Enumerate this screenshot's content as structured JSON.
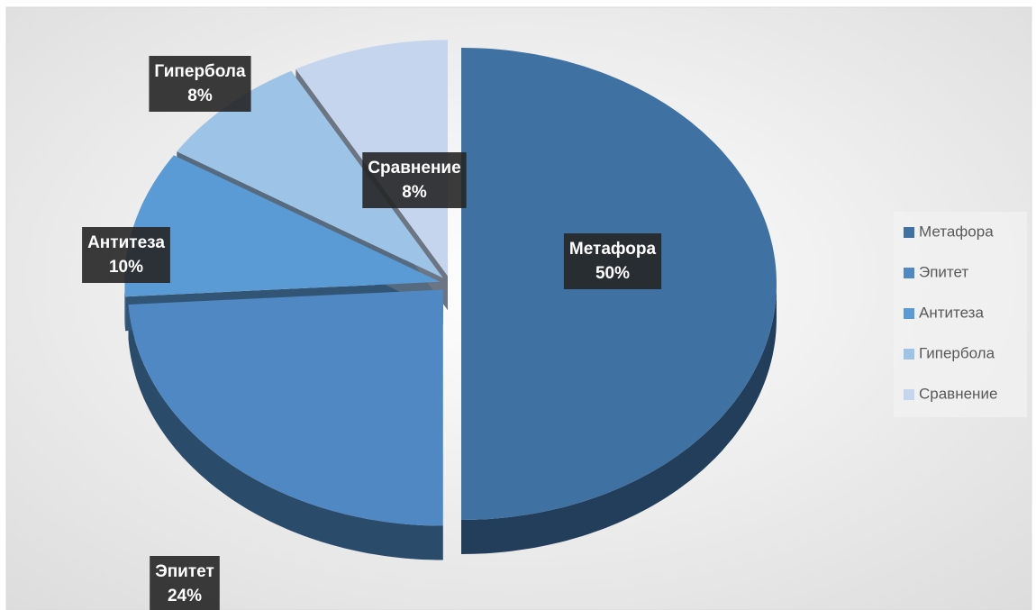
{
  "chart_data": {
    "type": "pie",
    "categories": [
      "Метафора",
      "Эпитет",
      "Антитеза",
      "Гипербола",
      "Сравнение"
    ],
    "values": [
      50,
      24,
      10,
      8,
      8
    ],
    "value_labels": [
      "50%",
      "24%",
      "10%",
      "8%",
      "8%"
    ],
    "colors": [
      "#3f71a3",
      "#4f88c3",
      "#5b9bd5",
      "#9dc3e6",
      "#c5d5ee"
    ],
    "legend": "right"
  }
}
